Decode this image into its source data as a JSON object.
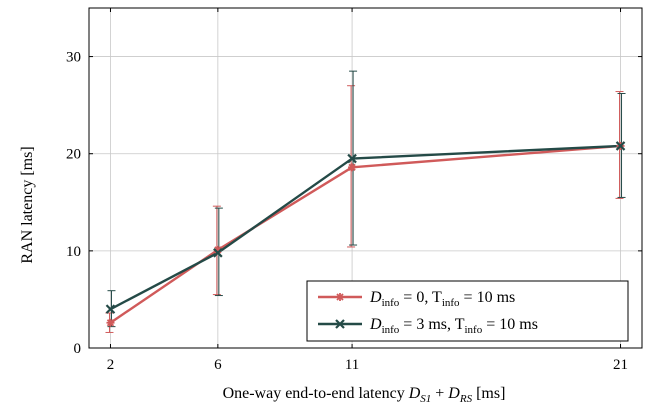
{
  "chart_data": {
    "type": "line",
    "title": "",
    "xlabel": "One-way end-to-end latency D_S1 + D_RS [ms]",
    "xlabel_parts": {
      "prefix": "One-way end-to-end latency ",
      "var1": "D",
      "sub1": "S1",
      "plus": " + ",
      "var2": "D",
      "sub2": "RS",
      "suffix": " [ms]"
    },
    "ylabel": "RAN latency [ms]",
    "x": [
      2,
      6,
      11,
      21
    ],
    "xticks": [
      2,
      6,
      11,
      21
    ],
    "xlim": [
      1.2,
      21.8
    ],
    "ylim": [
      0,
      35
    ],
    "yticks": [
      0,
      10,
      20,
      30
    ],
    "grid": true,
    "legend_position": "bottom-right",
    "series": [
      {
        "name": "D_info = 0, T_info = 10 ms",
        "legend": {
          "pre": "D",
          "sub1": "info",
          "mid": " = 0, T",
          "sub2": "info",
          "post": " = 10 ms"
        },
        "color": "#d05a5a",
        "marker": "star",
        "values": [
          2.6,
          10.1,
          18.6,
          20.8
        ],
        "err_low": [
          1.6,
          5.5,
          10.4,
          15.4
        ],
        "err_high": [
          3.6,
          14.6,
          27.0,
          26.4
        ]
      },
      {
        "name": "D_info = 3 ms, T_info = 10 ms",
        "legend": {
          "pre": "D",
          "sub1": "info",
          "mid": " = 3 ms, T",
          "sub2": "info",
          "post": " = 10 ms"
        },
        "color": "#244a47",
        "marker": "x",
        "values": [
          4.0,
          9.8,
          19.5,
          20.8
        ],
        "err_low": [
          2.2,
          5.4,
          10.6,
          15.5
        ],
        "err_high": [
          5.9,
          14.4,
          28.5,
          26.2
        ]
      }
    ]
  }
}
